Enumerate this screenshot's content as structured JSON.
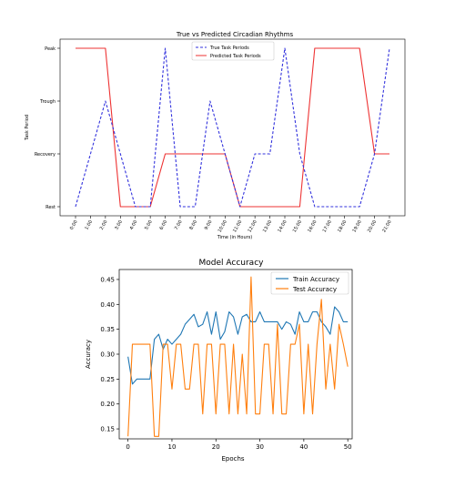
{
  "chart_data": [
    {
      "type": "line",
      "title": "True vs Predicted Circadian Rhythms",
      "xlabel": "Time (in Hours)",
      "ylabel": "Task Period",
      "categories": [
        "0:00",
        "1:00",
        "2:00",
        "3:00",
        "4:00",
        "5:00",
        "6:00",
        "7:00",
        "8:00",
        "9:00",
        "10:00",
        "11:00",
        "12:00",
        "13:00",
        "14:00",
        "15:00",
        "16:00",
        "17:00",
        "18:00",
        "19:00",
        "20:00",
        "21:00"
      ],
      "y_categories": [
        "Rest",
        "Recovery",
        "Trough",
        "Peak"
      ],
      "series": [
        {
          "name": "True Task Periods",
          "color": "#3333dd",
          "style": "dashed",
          "values": [
            "Rest",
            "Recovery",
            "Trough",
            "Recovery",
            "Rest",
            "Rest",
            "Peak",
            "Rest",
            "Rest",
            "Trough",
            "Recovery",
            "Rest",
            "Recovery",
            "Recovery",
            "Peak",
            "Recovery",
            "Rest",
            "Rest",
            "Rest",
            "Rest",
            "Recovery",
            "Peak"
          ]
        },
        {
          "name": "Predicted Task Periods",
          "color": "#ee3333",
          "style": "solid",
          "values": [
            "Peak",
            "Peak",
            "Peak",
            "Rest",
            "Rest",
            "Rest",
            "Recovery",
            "Recovery",
            "Recovery",
            "Recovery",
            "Recovery",
            "Rest",
            "Rest",
            "Rest",
            "Rest",
            "Rest",
            "Peak",
            "Peak",
            "Peak",
            "Peak",
            "Recovery",
            "Recovery"
          ]
        }
      ],
      "legend_position": "top-center"
    },
    {
      "type": "line",
      "title": "Model Accuracy",
      "xlabel": "Epochs",
      "ylabel": "Accuracy",
      "xlim": [
        -2,
        51
      ],
      "ylim": [
        0.13,
        0.47
      ],
      "xticks": [
        "0",
        "10",
        "20",
        "30",
        "40",
        "50"
      ],
      "yticks": [
        "0.15",
        "0.20",
        "0.25",
        "0.30",
        "0.35",
        "0.40",
        "0.45"
      ],
      "legend_position": "top-right",
      "series": [
        {
          "name": "Train Accuracy",
          "color": "#1f77b4",
          "values": [
            0.295,
            0.24,
            0.25,
            0.25,
            0.25,
            0.25,
            0.33,
            0.34,
            0.31,
            0.33,
            0.32,
            0.33,
            0.34,
            0.36,
            0.37,
            0.38,
            0.355,
            0.36,
            0.385,
            0.34,
            0.385,
            0.33,
            0.345,
            0.385,
            0.375,
            0.34,
            0.375,
            0.38,
            0.365,
            0.365,
            0.385,
            0.365,
            0.365,
            0.365,
            0.365,
            0.35,
            0.365,
            0.36,
            0.34,
            0.385,
            0.365,
            0.365,
            0.385,
            0.385,
            0.365,
            0.355,
            0.34,
            0.395,
            0.385,
            0.365,
            0.365
          ]
        },
        {
          "name": "Test Accuracy",
          "color": "#ff7f0e",
          "values": [
            0.135,
            0.32,
            0.32,
            0.32,
            0.32,
            0.32,
            0.135,
            0.135,
            0.32,
            0.32,
            0.23,
            0.32,
            0.32,
            0.23,
            0.23,
            0.32,
            0.32,
            0.18,
            0.32,
            0.32,
            0.18,
            0.32,
            0.32,
            0.18,
            0.32,
            0.18,
            0.3,
            0.18,
            0.455,
            0.18,
            0.18,
            0.32,
            0.32,
            0.18,
            0.36,
            0.18,
            0.18,
            0.32,
            0.32,
            0.36,
            0.18,
            0.32,
            0.18,
            0.32,
            0.41,
            0.23,
            0.32,
            0.23,
            0.36,
            0.32,
            0.275
          ]
        }
      ]
    }
  ]
}
